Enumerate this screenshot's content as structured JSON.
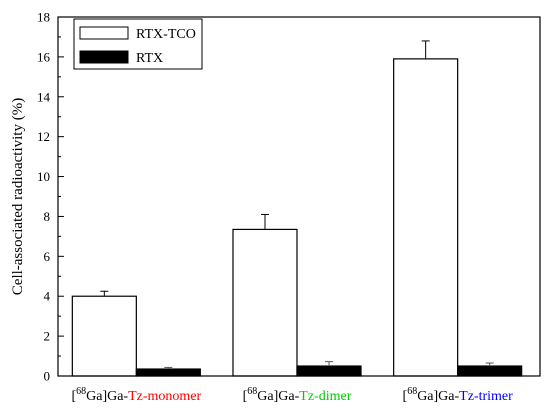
{
  "chart_data": {
    "type": "bar",
    "categories": [
      {
        "prefix": "[",
        "sup": "68",
        "mid": "Ga]Ga-",
        "suffix": "Tz-monomer",
        "suffix_color": "#ff0000"
      },
      {
        "prefix": "[",
        "sup": "68",
        "mid": "Ga]Ga-",
        "suffix": "Tz-dimer",
        "suffix_color": "#00cc00"
      },
      {
        "prefix": "[",
        "sup": "68",
        "mid": "Ga]Ga-",
        "suffix": "Tz-trimer",
        "suffix_color": "#0000ff"
      }
    ],
    "series": [
      {
        "name": "RTX-TCO",
        "values": [
          4.0,
          7.35,
          15.9
        ],
        "errors": [
          0.25,
          0.75,
          0.9
        ],
        "fill": "#ffffff",
        "stroke": "#000000"
      },
      {
        "name": "RTX",
        "values": [
          0.35,
          0.5,
          0.5
        ],
        "errors": [
          0.08,
          0.22,
          0.15
        ],
        "fill": "#000000",
        "stroke": "#000000"
      }
    ],
    "ylabel": "Cell-associated radioactivity (%)",
    "ylim": [
      0,
      18
    ],
    "yticks": [
      0,
      2,
      4,
      6,
      8,
      10,
      12,
      14,
      16,
      18
    ],
    "legend_position": "top-left",
    "grid": false
  }
}
